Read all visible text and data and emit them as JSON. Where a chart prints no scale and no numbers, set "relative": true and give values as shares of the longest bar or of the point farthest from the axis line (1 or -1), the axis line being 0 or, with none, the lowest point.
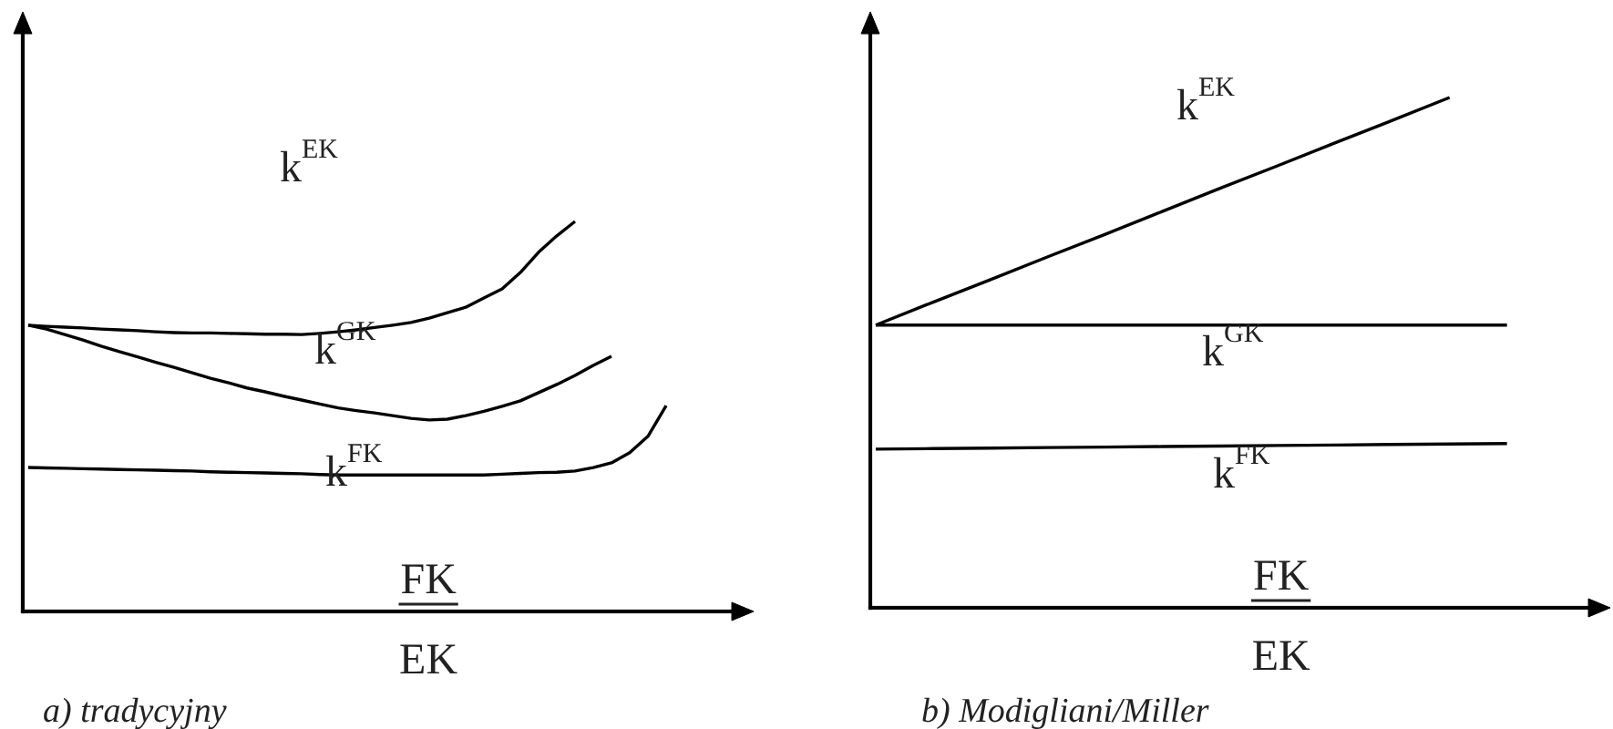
{
  "chart_data": [
    {
      "type": "line",
      "title": "a) tradycyjny",
      "xlabel": "FK\nEK",
      "relative": true,
      "categories": [
        null,
        null,
        null,
        null,
        null,
        null,
        null,
        null,
        null,
        null,
        null,
        null,
        null,
        null,
        null,
        null,
        null,
        null,
        null,
        null,
        null,
        null,
        null,
        null,
        null,
        null,
        null,
        null,
        null,
        null,
        null,
        null,
        null,
        null,
        null,
        null,
        null,
        null,
        null,
        null
      ],
      "series": [
        {
          "color": "#000000",
          "values": [
            0.734,
            0.731,
            0.729,
            0.727,
            0.724,
            0.722,
            0.72,
            0.717,
            0.715,
            0.714,
            0.714,
            0.713,
            0.712,
            0.711,
            0.711,
            0.71,
            0.713,
            0.717,
            0.722,
            0.728,
            0.734,
            0.741,
            0.752,
            0.766,
            0.78,
            0.804,
            0.827,
            0.869,
            0.921,
            0.963,
            1.0,
            null,
            null,
            null,
            null,
            null,
            null,
            null,
            null,
            null
          ]
        },
        {
          "color": "#000000",
          "values": [
            0.734,
            0.724,
            0.71,
            0.696,
            0.68,
            0.666,
            0.653,
            0.639,
            0.626,
            0.612,
            0.598,
            0.586,
            0.573,
            0.563,
            0.552,
            0.542,
            0.532,
            0.522,
            0.515,
            0.509,
            0.502,
            0.495,
            0.491,
            0.493,
            0.502,
            0.513,
            0.526,
            0.54,
            0.561,
            0.582,
            0.605,
            0.631,
            0.654,
            null,
            null,
            null,
            null,
            null,
            null,
            null
          ]
        },
        {
          "color": "#000000",
          "values": [
            0.369,
            0.368,
            0.367,
            0.366,
            0.365,
            0.364,
            0.363,
            0.362,
            0.361,
            0.36,
            0.358,
            0.357,
            0.356,
            0.355,
            0.354,
            0.353,
            0.351,
            0.35,
            0.35,
            0.35,
            0.35,
            0.35,
            0.35,
            0.35,
            0.35,
            0.35,
            0.352,
            0.354,
            0.356,
            0.357,
            0.36,
            0.369,
            0.381,
            0.407,
            0.449,
            0.528,
            null,
            null,
            null,
            null
          ]
        }
      ],
      "annotations": [
        "k$^{EK}$",
        "k$^{GK}$",
        "k$^{FK}$"
      ]
    },
    {
      "type": "line",
      "title": "b) Modigliani/Miller",
      "xlabel": "FK\nEK",
      "relative": true,
      "categories": [
        null,
        null,
        null,
        null,
        null,
        null,
        null,
        null,
        null,
        null,
        null,
        null,
        null
      ],
      "series": [
        {
          "color": "#000000",
          "values": [
            0.554,
            0.599,
            0.643,
            0.688,
            0.732,
            0.777,
            0.822,
            0.866,
            0.911,
            0.955,
            1.0,
            null,
            null
          ]
        },
        {
          "color": "#000000",
          "values": [
            0.554,
            0.554,
            0.554,
            0.554,
            0.554,
            0.554,
            0.554,
            0.554,
            0.554,
            0.554,
            0.554,
            0.554,
            null
          ]
        },
        {
          "color": "#000000",
          "values": [
            0.311,
            0.312,
            0.313,
            0.314,
            0.315,
            0.316,
            0.317,
            0.318,
            0.319,
            0.32,
            0.321,
            0.322,
            null
          ]
        }
      ],
      "annotations": [
        "k$^{EK}$",
        "k$^{GK}$",
        "k$^{FK}$"
      ]
    }
  ]
}
